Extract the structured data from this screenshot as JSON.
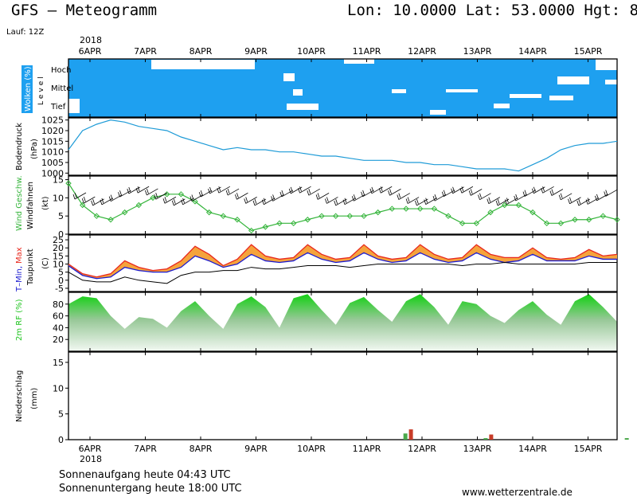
{
  "header": {
    "title": "GFS – Meteogramm",
    "location": "Lon: 10.0000  Lat: 53.0000  Hgt: 8",
    "run": "Lauf: 12Z"
  },
  "time_axis": {
    "year": "2018",
    "days": [
      "6APR",
      "7APR",
      "8APR",
      "9APR",
      "10APR",
      "11APR",
      "12APR",
      "13APR",
      "14APR",
      "15APR"
    ]
  },
  "panels": {
    "clouds": {
      "label": "Wolken (%)",
      "level_label": "Level",
      "levels": [
        "Hoch",
        "Mittel",
        "Tief"
      ]
    },
    "pressure": {
      "label": "Bodendruck",
      "unit": "(hPa)"
    },
    "wind": {
      "label_speed": "Wind Geschw.",
      "label_barbs": "Windfahnen",
      "unit": "(kt)"
    },
    "temperature": {
      "label_tmin": "T–Min,",
      "label_tmax": "Max",
      "label_dew": "Taupunkt",
      "unit": "(C)"
    },
    "humidity": {
      "label": "2m RF (%)"
    },
    "precip": {
      "label": "Niederschlag",
      "unit": "(mm)"
    }
  },
  "footer": {
    "sunrise": "Sonnenaufgang heute 04:43 UTC",
    "sunset": "Sonnenuntergang heute 18:00 UTC",
    "website": "www.wetterzentrale.de"
  },
  "colors": {
    "cloud": "#1ea0f0",
    "pressure_line": "#1e9bd7",
    "wind_line": "#34b43a",
    "tmin": "#1a1ad0",
    "tmax": "#e8281e",
    "rh_fill": "#1fc41f",
    "precip_green": "#4aa84a",
    "precip_red": "#c83c28"
  },
  "chart_data": [
    {
      "type": "line",
      "panel": "pressure",
      "ylabel": "Bodendruck (hPa)",
      "yticks": [
        1000,
        1005,
        1010,
        1015,
        1020,
        1025
      ],
      "ylim": [
        999,
        1026
      ],
      "series": [
        {
          "x": [
            0,
            0.25,
            0.5,
            0.75,
            1,
            1.25,
            1.5,
            1.75,
            2,
            2.25,
            2.5,
            2.75,
            3,
            3.25,
            3.5,
            3.75,
            4,
            4.25,
            4.5,
            4.75,
            5,
            5.25,
            5.5,
            5.75,
            6,
            6.25,
            6.5,
            6.75,
            7,
            7.25,
            7.5,
            7.75,
            8,
            8.25,
            8.5,
            8.75,
            9,
            9.25,
            9.5,
            9.75
          ],
          "values": [
            1011,
            1020,
            1023,
            1025,
            1024,
            1022,
            1021,
            1020,
            1017,
            1015,
            1013,
            1011,
            1012,
            1011,
            1011,
            1010,
            1010,
            1009,
            1008,
            1008,
            1007,
            1006,
            1006,
            1006,
            1005,
            1005,
            1004,
            1004,
            1003,
            1002,
            1002,
            1002,
            1001,
            1004,
            1007,
            1011,
            1013,
            1014,
            1014,
            1015
          ]
        }
      ]
    },
    {
      "type": "line",
      "panel": "wind",
      "ylabel": "Wind Geschw. (kt)",
      "yticks": [
        0,
        5,
        10,
        15
      ],
      "ylim": [
        0,
        16
      ],
      "series": [
        {
          "x": [
            0,
            0.25,
            0.5,
            0.75,
            1,
            1.25,
            1.5,
            1.75,
            2,
            2.25,
            2.5,
            2.75,
            3,
            3.25,
            3.5,
            3.75,
            4,
            4.25,
            4.5,
            4.75,
            5,
            5.25,
            5.5,
            5.75,
            6,
            6.25,
            6.5,
            6.75,
            7,
            7.25,
            7.5,
            7.75,
            8,
            8.25,
            8.5,
            8.75,
            9,
            9.25,
            9.5,
            9.75
          ],
          "values": [
            14,
            8,
            5,
            4,
            6,
            8,
            10,
            11,
            11,
            9,
            6,
            5,
            4,
            1,
            2,
            3,
            3,
            4,
            5,
            5,
            5,
            5,
            6,
            7,
            7,
            7,
            7,
            5,
            3,
            3,
            6,
            8,
            8,
            6,
            3,
            3,
            4,
            4,
            5,
            4
          ]
        }
      ]
    },
    {
      "type": "area",
      "panel": "temperature",
      "ylabel": "T-Min, Max / Taupunkt (C)",
      "yticks": [
        -5,
        0,
        5,
        10,
        15,
        20,
        25
      ],
      "ylim": [
        -7,
        28
      ],
      "x": [
        0,
        0.25,
        0.5,
        0.75,
        1,
        1.25,
        1.5,
        1.75,
        2,
        2.25,
        2.5,
        2.75,
        3,
        3.25,
        3.5,
        3.75,
        4,
        4.25,
        4.5,
        4.75,
        5,
        5.25,
        5.5,
        5.75,
        6,
        6.25,
        6.5,
        6.75,
        7,
        7.25,
        7.5,
        7.75,
        8,
        8.25,
        8.5,
        8.75,
        9,
        9.25,
        9.5,
        9.75
      ],
      "series": [
        {
          "name": "T-Min",
          "values": [
            9,
            3,
            1,
            2,
            8,
            6,
            5,
            5,
            8,
            15,
            12,
            8,
            10,
            16,
            12,
            11,
            12,
            17,
            13,
            11,
            12,
            17,
            13,
            11,
            12,
            17,
            13,
            11,
            12,
            17,
            13,
            11,
            12,
            16,
            12,
            12,
            12,
            15,
            13,
            13
          ]
        },
        {
          "name": "Max",
          "values": [
            10,
            4,
            2,
            4,
            12,
            8,
            6,
            7,
            12,
            21,
            16,
            9,
            13,
            22,
            15,
            13,
            14,
            22,
            16,
            13,
            14,
            22,
            15,
            13,
            14,
            22,
            16,
            13,
            14,
            22,
            16,
            14,
            14,
            20,
            14,
            13,
            14,
            19,
            15,
            16
          ]
        },
        {
          "name": "Taupunkt",
          "values": [
            5,
            0,
            -1,
            -1,
            2,
            0,
            -1,
            -2,
            3,
            5,
            5,
            6,
            6,
            8,
            7,
            7,
            8,
            9,
            9,
            9,
            8,
            9,
            10,
            10,
            10,
            10,
            10,
            10,
            9,
            10,
            10,
            11,
            10,
            10,
            10,
            10,
            10,
            11,
            11,
            11
          ]
        }
      ]
    },
    {
      "type": "area",
      "panel": "humidity",
      "ylabel": "2m RF (%)",
      "yticks": [
        20,
        40,
        60,
        80
      ],
      "ylim": [
        0,
        100
      ],
      "series": [
        {
          "x": [
            0,
            0.25,
            0.5,
            0.75,
            1,
            1.25,
            1.5,
            1.75,
            2,
            2.25,
            2.5,
            2.75,
            3,
            3.25,
            3.5,
            3.75,
            4,
            4.25,
            4.5,
            4.75,
            5,
            5.25,
            5.5,
            5.75,
            6,
            6.25,
            6.5,
            6.75,
            7,
            7.25,
            7.5,
            7.75,
            8,
            8.25,
            8.5,
            8.75,
            9,
            9.25,
            9.5,
            9.75
          ],
          "values": [
            80,
            93,
            90,
            60,
            38,
            58,
            55,
            40,
            68,
            85,
            60,
            38,
            80,
            93,
            75,
            40,
            90,
            97,
            70,
            45,
            82,
            92,
            70,
            50,
            85,
            97,
            75,
            45,
            85,
            80,
            60,
            48,
            70,
            85,
            62,
            45,
            85,
            97,
            75,
            50
          ]
        }
      ]
    },
    {
      "type": "bar",
      "panel": "precip",
      "ylabel": "Niederschlag (mm)",
      "yticks": [
        0,
        5,
        10,
        15
      ],
      "ylim": [
        0,
        17
      ],
      "series": [
        {
          "name": "precip",
          "x": [
            5.7,
            5.8,
            7.15,
            7.25,
            9.7
          ],
          "values": [
            1.2,
            2.0,
            0.3,
            1.0,
            0.3
          ]
        }
      ]
    }
  ]
}
